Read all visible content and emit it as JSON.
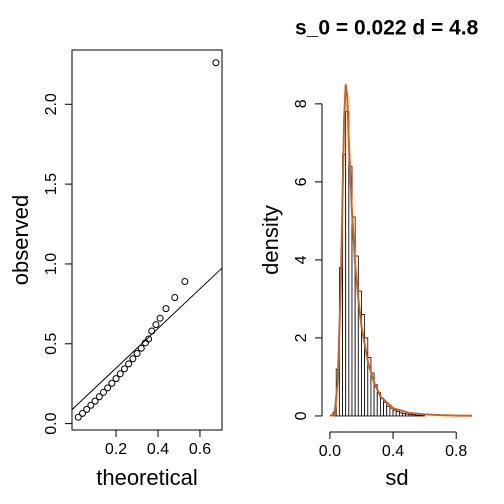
{
  "chart_data": [
    {
      "type": "scatter",
      "xlabel": "theoretical",
      "ylabel": "observed",
      "color": "#000000",
      "box": true,
      "x": [
        0.02,
        0.04,
        0.06,
        0.08,
        0.1,
        0.12,
        0.14,
        0.16,
        0.18,
        0.2,
        0.22,
        0.24,
        0.26,
        0.28,
        0.3,
        0.32,
        0.34,
        0.355,
        0.37,
        0.39,
        0.41,
        0.438,
        0.48,
        0.528,
        0.676
      ],
      "y": [
        0.04,
        0.064,
        0.089,
        0.115,
        0.141,
        0.168,
        0.196,
        0.224,
        0.253,
        0.282,
        0.312,
        0.343,
        0.374,
        0.406,
        0.439,
        0.472,
        0.506,
        0.53,
        0.58,
        0.62,
        0.66,
        0.72,
        0.79,
        0.89,
        2.26
      ],
      "reference_line": {
        "intercept": 0.1,
        "slope": 1.24
      },
      "xlim": [
        -0.01,
        0.705
      ],
      "ylim": [
        -0.04,
        2.34
      ],
      "xticks": [
        0.2,
        0.4,
        0.6
      ],
      "yticks": [
        {
          "value": 0,
          "label": "0.0"
        },
        0.5,
        {
          "value": 1,
          "label": "1.0"
        },
        1.5,
        {
          "value": 2,
          "label": "2.0"
        }
      ]
    },
    {
      "type": "histogram",
      "title": "s_0 = 0.022 d = 4.8",
      "xlabel": "sd",
      "ylabel": "density",
      "color": "#ffffff",
      "bins": [
        0.02,
        0.04,
        0.06,
        0.08,
        0.1,
        0.12,
        0.14,
        0.16,
        0.18,
        0.2,
        0.22,
        0.24,
        0.26,
        0.28,
        0.3,
        0.32,
        0.34,
        0.36,
        0.38,
        0.4,
        0.42,
        0.44,
        0.46,
        0.48,
        0.5,
        0.52,
        0.54,
        0.56,
        0.58,
        0.6
      ],
      "counts": [
        0.1,
        1.2,
        3.8,
        6.7,
        7.8,
        6.4,
        5.1,
        4.1,
        3.2,
        2.6,
        2.0,
        1.5,
        1.1,
        0.8,
        0.6,
        0.45,
        0.35,
        0.25,
        0.2,
        0.15,
        0.12,
        0.08,
        0.06,
        0.05,
        0.04,
        0.03,
        0.02,
        0.02,
        0.01
      ],
      "density_line": {
        "color": "#d2601e",
        "x": [
          0,
          0.03,
          0.05,
          0.07,
          0.08,
          0.09,
          0.1,
          0.11,
          0.12,
          0.14,
          0.16,
          0.18,
          0.2,
          0.24,
          0.28,
          0.32,
          0.4,
          0.5,
          0.6,
          0.7,
          0.8,
          0.9
        ],
        "y": [
          0,
          0.05,
          0.9,
          3.5,
          5.6,
          7.6,
          8.5,
          8.2,
          7.0,
          5.2,
          3.9,
          3.0,
          2.3,
          1.4,
          0.85,
          0.5,
          0.2,
          0.08,
          0.04,
          0.02,
          0.01,
          0.005
        ]
      },
      "xlim": [
        -0.05,
        0.9
      ],
      "ylim": [
        -0.36,
        9.38
      ],
      "xticks": [
        {
          "value": 0,
          "label": "0.0"
        },
        0.4,
        0.8
      ],
      "yticks": [
        0,
        2,
        4,
        6,
        8
      ]
    }
  ]
}
